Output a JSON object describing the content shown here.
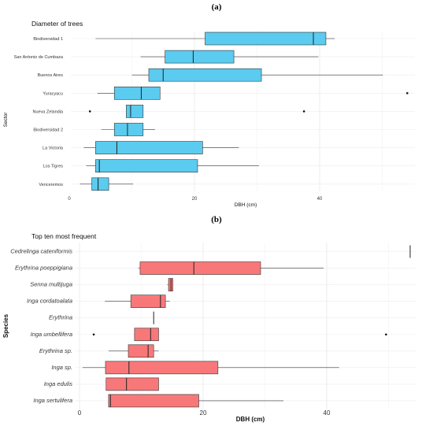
{
  "chart_data": [
    {
      "panel": "(a)",
      "type": "boxplot",
      "title": "Diameter of trees",
      "xlabel": "DBH (cm)",
      "ylabel": "Sector",
      "xlim": [
        -1,
        55
      ],
      "xticks": [
        0,
        20,
        40
      ],
      "grid": true,
      "fill_color": "#5bcbef",
      "categories": [
        "Biodiversidad 1",
        "San Antonio de Cumbaza",
        "Buenos Aires",
        "Yuracyacu",
        "Nueva Zelandia",
        "Biodiversidad 2",
        "La Victoria",
        "Los Tigres",
        "Venceremos"
      ],
      "boxes": [
        {
          "label": "Biodiversidad 1",
          "whisker_low": 4.2,
          "q1": 21.7,
          "median": 39,
          "q3": 41,
          "whisker_high": 42.4,
          "outliers": []
        },
        {
          "label": "San Antonio de Cumbaza",
          "whisker_low": 11.4,
          "q1": 15.3,
          "median": 19.8,
          "q3": 26.3,
          "whisker_high": 39.8,
          "outliers": []
        },
        {
          "label": "Buenos Aires",
          "whisker_low": 10,
          "q1": 12.7,
          "median": 15,
          "q3": 30.7,
          "whisker_high": 50.1,
          "outliers": []
        },
        {
          "label": "Yuracyacu",
          "whisker_low": 4.5,
          "q1": 7.2,
          "median": 11.5,
          "q3": 14.5,
          "whisker_high": 14.5,
          "outliers": [
            54
          ]
        },
        {
          "label": "Nueva Zelandia",
          "whisker_low": 9.1,
          "q1": 9.1,
          "median": 9.8,
          "q3": 11.8,
          "whisker_high": 11.8,
          "outliers": [
            3.3,
            37.5
          ]
        },
        {
          "label": "Biodiversidad 2",
          "whisker_low": 5.1,
          "q1": 7.2,
          "median": 9.3,
          "q3": 11.8,
          "whisker_high": 13.7,
          "outliers": []
        },
        {
          "label": "La Victoria",
          "whisker_low": 2.3,
          "q1": 4.2,
          "median": 7.6,
          "q3": 21.3,
          "whisker_high": 27.1,
          "outliers": []
        },
        {
          "label": "Los Tigres",
          "whisker_low": 2.7,
          "q1": 4.2,
          "median": 4.8,
          "q3": 20.5,
          "whisker_high": 30.3,
          "outliers": []
        },
        {
          "label": "Venceremos",
          "whisker_low": 1.7,
          "q1": 3.6,
          "median": 4.6,
          "q3": 6.3,
          "whisker_high": 10.2,
          "outliers": []
        }
      ]
    },
    {
      "panel": "(b)",
      "type": "boxplot",
      "title": "Top ten most frequent",
      "xlabel": "DBH (cm)",
      "ylabel": "Species",
      "xlim": [
        -1,
        55
      ],
      "xticks": [
        0,
        20,
        40
      ],
      "grid": true,
      "fill_color": "#f8787a",
      "categories": [
        "Cedrelinga cateniformis",
        "Erythrina poeppigiana",
        "Senna multijuga",
        "Inga cordatoalata",
        "Erythrina",
        "Inga umbellifera",
        "Erythrina sp.",
        "Inga sp.",
        "Inga edulis",
        "Inga sertulifera"
      ],
      "boxes": [
        {
          "label": "Cedrelinga cateniformis",
          "whisker_low": 53.5,
          "q1": 53.5,
          "median": 53.5,
          "q3": 53.5,
          "whisker_high": 53.5,
          "outliers": []
        },
        {
          "label": "Erythrina poeppigiana",
          "whisker_low": 9.5,
          "q1": 9.8,
          "median": 18.5,
          "q3": 29.3,
          "whisker_high": 39.5,
          "outliers": []
        },
        {
          "label": "Senna multijuga",
          "whisker_low": 14.2,
          "q1": 14.4,
          "median": 14.8,
          "q3": 15.1,
          "whisker_high": 15.1,
          "outliers": []
        },
        {
          "label": "Inga cordatoalata",
          "whisker_low": 4.1,
          "q1": 8.3,
          "median": 13.1,
          "q3": 13.9,
          "whisker_high": 14.6,
          "outliers": []
        },
        {
          "label": "Erythrina",
          "whisker_low": 12,
          "q1": 12,
          "median": 12,
          "q3": 12,
          "whisker_high": 12,
          "outliers": []
        },
        {
          "label": "Inga umbellifera",
          "whisker_low": 8.9,
          "q1": 8.9,
          "median": 11.5,
          "q3": 12.8,
          "whisker_high": 12.8,
          "outliers": [
            2.3,
            49.6
          ]
        },
        {
          "label": "Erythrina sp.",
          "whisker_low": 4.7,
          "q1": 7.9,
          "median": 11.1,
          "q3": 12,
          "whisker_high": 12.8,
          "outliers": []
        },
        {
          "label": "Inga sp.",
          "whisker_low": 0.5,
          "q1": 4.2,
          "median": 8,
          "q3": 22.4,
          "whisker_high": 42,
          "outliers": []
        },
        {
          "label": "Inga edulis",
          "whisker_low": 4.3,
          "q1": 4.3,
          "median": 7.6,
          "q3": 12.8,
          "whisker_high": 12.8,
          "outliers": []
        },
        {
          "label": "Inga sertulifera",
          "whisker_low": 4.7,
          "q1": 4.7,
          "median": 5,
          "q3": 19.3,
          "whisker_high": 33,
          "outliers": []
        }
      ]
    }
  ]
}
